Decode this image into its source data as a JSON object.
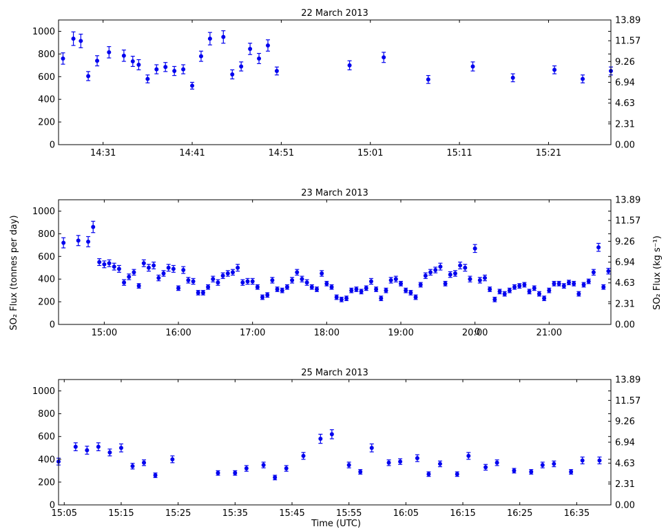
{
  "figure": {
    "ylabel_left": "SO₂ Flux (tonnes per day)",
    "ylabel_right": "SO₂ Flux (kg s⁻¹)",
    "xlabel": "Time (UTC)",
    "stray_text": "0"
  },
  "chart_data": [
    {
      "type": "scatter",
      "title": "22 March 2013",
      "error_bars": true,
      "ylim": [
        0,
        1100
      ],
      "yticks": [
        0,
        200,
        400,
        600,
        800,
        1000
      ],
      "ytick_labels": [
        "0",
        "200",
        "400",
        "600",
        "800",
        "1000"
      ],
      "right_ytick_labels": [
        "0.00",
        "2.31",
        "4.63",
        "6.94",
        "9.26",
        "11.57",
        "13.89"
      ],
      "xlim": [
        "14:26",
        "15:28"
      ],
      "xtick_labels": [
        "14:31",
        "14:41",
        "14:51",
        "15:01",
        "15:11",
        "15:21"
      ],
      "series": [
        {
          "x": [
            "14:26:30",
            "14:27:40",
            "14:28:30",
            "14:29:20",
            "14:30:20",
            "14:31:40",
            "14:33:20",
            "14:34:20",
            "14:35:00",
            "14:36:00",
            "14:37:00",
            "14:38:00",
            "14:39:00",
            "14:40:00",
            "14:41:00",
            "14:42:00",
            "14:43:00",
            "14:44:30",
            "14:45:30",
            "14:46:30",
            "14:47:30",
            "14:48:30",
            "14:49:30",
            "14:50:30",
            "14:58:40",
            "15:02:30",
            "15:07:30",
            "15:12:30",
            "15:17:00",
            "15:21:40",
            "15:24:50",
            "15:28:00"
          ],
          "y": [
            760,
            935,
            915,
            605,
            740,
            815,
            785,
            735,
            705,
            580,
            665,
            685,
            650,
            665,
            520,
            780,
            935,
            950,
            620,
            690,
            845,
            760,
            875,
            650,
            700,
            770,
            575,
            690,
            590,
            660,
            580,
            650
          ],
          "err": [
            50,
            60,
            60,
            40,
            45,
            50,
            50,
            45,
            45,
            35,
            40,
            40,
            40,
            40,
            30,
            45,
            55,
            55,
            40,
            40,
            50,
            45,
            50,
            35,
            40,
            45,
            35,
            40,
            35,
            35,
            35,
            35
          ]
        }
      ]
    },
    {
      "type": "scatter",
      "title": "23 March 2013",
      "error_bars": true,
      "ylim": [
        0,
        1100
      ],
      "yticks": [
        0,
        200,
        400,
        600,
        800,
        1000
      ],
      "ytick_labels": [
        "0",
        "200",
        "400",
        "600",
        "800",
        "1000"
      ],
      "right_ytick_labels": [
        "0.00",
        "2.31",
        "4.63",
        "6.94",
        "9.26",
        "11.57",
        "13.89"
      ],
      "xlim": [
        "14:23",
        "21:50"
      ],
      "xtick_labels": [
        "15:00",
        "16:00",
        "17:00",
        "18:00",
        "19:00",
        "20:00",
        "21:00"
      ],
      "series": [
        {
          "x": [
            "14:27",
            "14:39",
            "14:47",
            "14:51",
            "14:56",
            "15:00",
            "15:04",
            "15:08",
            "15:12",
            "15:16",
            "15:20",
            "15:24",
            "15:28",
            "15:32",
            "15:36",
            "15:40",
            "15:44",
            "15:48",
            "15:52",
            "15:56",
            "16:00",
            "16:04",
            "16:08",
            "16:12",
            "16:16",
            "16:20",
            "16:24",
            "16:28",
            "16:32",
            "16:36",
            "16:40",
            "16:44",
            "16:48",
            "16:52",
            "16:56",
            "17:00",
            "17:04",
            "17:08",
            "17:12",
            "17:16",
            "17:20",
            "17:24",
            "17:28",
            "17:32",
            "17:36",
            "17:40",
            "17:44",
            "17:48",
            "17:52",
            "17:56",
            "18:00",
            "18:04",
            "18:08",
            "18:12",
            "18:16",
            "18:20",
            "18:24",
            "18:28",
            "18:32",
            "18:36",
            "18:40",
            "18:44",
            "18:48",
            "18:52",
            "18:56",
            "19:00",
            "19:04",
            "19:08",
            "19:12",
            "19:16",
            "19:20",
            "19:24",
            "19:28",
            "19:32",
            "19:36",
            "19:40",
            "19:44",
            "19:48",
            "19:52",
            "19:56",
            "20:00",
            "20:04",
            "20:08",
            "20:12",
            "20:16",
            "20:20",
            "20:24",
            "20:28",
            "20:32",
            "20:36",
            "20:40",
            "20:44",
            "20:48",
            "20:52",
            "20:56",
            "21:00",
            "21:04",
            "21:08",
            "21:12",
            "21:16",
            "21:20",
            "21:24",
            "21:28",
            "21:32",
            "21:36",
            "21:40",
            "21:44",
            "21:48"
          ],
          "y": [
            720,
            740,
            730,
            860,
            550,
            530,
            540,
            510,
            490,
            370,
            420,
            460,
            340,
            540,
            500,
            520,
            410,
            450,
            500,
            490,
            320,
            480,
            390,
            380,
            280,
            280,
            330,
            400,
            370,
            430,
            450,
            460,
            500,
            370,
            380,
            380,
            330,
            240,
            260,
            390,
            310,
            300,
            330,
            390,
            460,
            400,
            370,
            330,
            310,
            450,
            360,
            330,
            240,
            220,
            230,
            300,
            310,
            290,
            320,
            380,
            310,
            230,
            300,
            390,
            400,
            360,
            300,
            280,
            240,
            350,
            430,
            460,
            480,
            510,
            360,
            440,
            450,
            520,
            500,
            400,
            670,
            390,
            410,
            310,
            220,
            290,
            270,
            300,
            330,
            340,
            350,
            290,
            320,
            270,
            230,
            300,
            360,
            360,
            340,
            370,
            360,
            270,
            350,
            380,
            460,
            680,
            330,
            470
          ],
          "err": [
            45,
            45,
            45,
            50,
            30,
            30,
            30,
            30,
            30,
            25,
            25,
            25,
            20,
            30,
            30,
            30,
            25,
            25,
            30,
            30,
            20,
            30,
            25,
            25,
            20,
            20,
            20,
            25,
            25,
            25,
            25,
            25,
            30,
            25,
            25,
            25,
            20,
            20,
            20,
            25,
            20,
            20,
            20,
            25,
            25,
            25,
            25,
            20,
            20,
            25,
            20,
            20,
            20,
            20,
            20,
            20,
            20,
            20,
            20,
            25,
            20,
            20,
            20,
            25,
            25,
            20,
            20,
            20,
            20,
            20,
            25,
            25,
            25,
            30,
            20,
            25,
            25,
            30,
            30,
            25,
            35,
            25,
            25,
            20,
            20,
            20,
            20,
            20,
            20,
            20,
            20,
            20,
            20,
            20,
            20,
            20,
            20,
            20,
            20,
            20,
            20,
            20,
            20,
            20,
            25,
            35,
            20,
            25
          ]
        }
      ]
    },
    {
      "type": "scatter",
      "title": "25 March 2013",
      "error_bars": true,
      "ylim": [
        0,
        1100
      ],
      "yticks": [
        0,
        200,
        400,
        600,
        800,
        1000
      ],
      "ytick_labels": [
        "0",
        "200",
        "400",
        "600",
        "800",
        "1000"
      ],
      "right_ytick_labels": [
        "0.00",
        "2.31",
        "4.63",
        "6.94",
        "9.26",
        "11.57",
        "13.89"
      ],
      "xlim": [
        "15:04",
        "16:41"
      ],
      "xtick_labels": [
        "15:05",
        "15:15",
        "15:25",
        "15:35",
        "15:45",
        "15:55",
        "16:05",
        "16:15",
        "16:25",
        "16:35"
      ],
      "series": [
        {
          "x": [
            "15:04",
            "15:07",
            "15:09",
            "15:11",
            "15:13",
            "15:15",
            "15:17",
            "15:19",
            "15:21",
            "15:24",
            "15:32",
            "15:35",
            "15:37",
            "15:40",
            "15:42",
            "15:44",
            "15:47",
            "15:50",
            "15:52",
            "15:55",
            "15:57",
            "15:59",
            "16:02",
            "16:04",
            "16:07",
            "16:09",
            "16:11",
            "16:14",
            "16:16",
            "16:19",
            "16:21",
            "16:24",
            "16:27",
            "16:29",
            "16:31",
            "16:34",
            "16:36",
            "16:39"
          ],
          "y": [
            380,
            510,
            480,
            510,
            460,
            500,
            340,
            370,
            260,
            400,
            280,
            280,
            320,
            350,
            240,
            320,
            430,
            580,
            620,
            350,
            290,
            500,
            370,
            380,
            410,
            270,
            360,
            270,
            430,
            330,
            370,
            300,
            290,
            350,
            360,
            290,
            390,
            390
          ],
          "err": [
            30,
            35,
            35,
            35,
            30,
            35,
            25,
            25,
            20,
            30,
            20,
            20,
            25,
            25,
            20,
            25,
            30,
            40,
            40,
            25,
            20,
            35,
            25,
            25,
            30,
            20,
            25,
            20,
            30,
            25,
            25,
            20,
            20,
            25,
            25,
            20,
            30,
            30
          ]
        }
      ]
    }
  ]
}
